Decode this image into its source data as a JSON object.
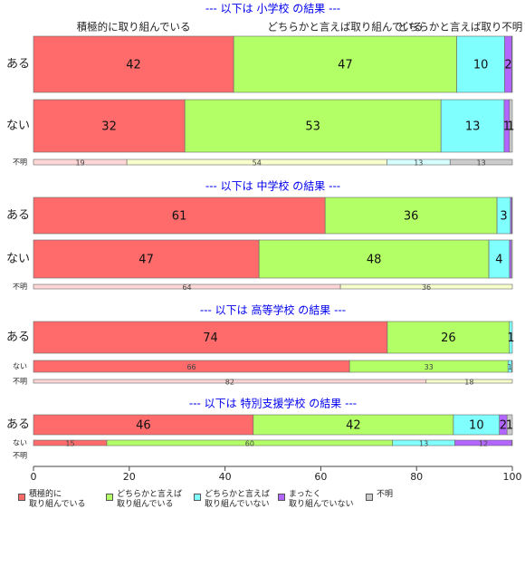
{
  "chart_data": {
    "type": "stacked-barh",
    "xlim": [
      0,
      100
    ],
    "xticks": [
      0,
      20,
      40,
      60,
      80,
      100
    ],
    "series": [
      {
        "name": "積極的に\n取り組んでいる",
        "color": "#ff6b6b"
      },
      {
        "name": "どちらかと言えば\n取り組んでいる",
        "color": "#b3ff66"
      },
      {
        "name": "どちらかと言えば\n取り組んでいない",
        "color": "#80ffff"
      },
      {
        "name": "まったく\n取り組んでいない",
        "color": "#b366ff"
      },
      {
        "name": "不明",
        "color": "#cccccc"
      }
    ],
    "panels": [
      {
        "title": "--- 以下は 小学校 の結果 ---",
        "column_labels": [
          "積極的に取り組んでいる",
          "どちらかと言えば取り組んでいる",
          "どちらかと言えば取り組んでいない",
          null,
          "不明"
        ],
        "rows": [
          {
            "label": "ある",
            "values": [
              41.8,
              46.6,
              10.0,
              1.5,
              0.1
            ],
            "value_labels": [
              "42",
              "47",
              "10",
              "2",
              null
            ]
          },
          {
            "label": "ない",
            "values": [
              31.6,
              53.5,
              13.2,
              1.1,
              0.6
            ],
            "value_labels": [
              "32",
              "53",
              "13",
              "1",
              "1"
            ]
          },
          {
            "label": "不明",
            "values": [
              19.5,
              54.3,
              13.2,
              0,
              13.0
            ],
            "value_labels": [
              "19",
              "54",
              "13",
              null,
              "13"
            ],
            "colors": [
              "#ffd6d6",
              "#f8ffcc",
              "#d6ffff",
              "#e6d6ff",
              "#cccccc"
            ]
          }
        ]
      },
      {
        "title": "--- 以下は 中学校 の結果 ---",
        "rows": [
          {
            "label": "ある",
            "values": [
              60.9,
              35.9,
              2.8,
              0.3,
              0.1
            ],
            "value_labels": [
              "61",
              "36",
              "3",
              null,
              null
            ]
          },
          {
            "label": "ない",
            "values": [
              47.1,
              48.0,
              4.3,
              0.4,
              0.2
            ],
            "value_labels": [
              "47",
              "48",
              "4",
              null,
              null
            ]
          },
          {
            "label": "不明",
            "values": [
              64.1,
              35.9,
              0,
              0,
              0
            ],
            "value_labels": [
              "64",
              "36",
              null,
              null,
              null
            ],
            "colors": [
              "#ffd6d6",
              "#f8ffcc",
              "#d6ffff",
              "#e6d6ff",
              "#cccccc"
            ]
          }
        ]
      },
      {
        "title": "--- 以下は 高等学校 の結果 ---",
        "rows": [
          {
            "label": "ある",
            "values": [
              73.9,
              25.5,
              0.6,
              0,
              0
            ],
            "value_labels": [
              "74",
              "26",
              "1",
              null,
              null
            ]
          },
          {
            "label": "ない",
            "values": [
              66.0,
              33.1,
              0.8,
              0.1,
              0
            ],
            "value_labels": [
              "66",
              "33",
              "1",
              null,
              null
            ]
          },
          {
            "label": "不明",
            "values": [
              82.0,
              18.0,
              0,
              0,
              0
            ],
            "value_labels": [
              "82",
              "18",
              null,
              null,
              null
            ],
            "colors": [
              "#ffd6d6",
              "#f8ffcc",
              "#d6ffff",
              "#e6d6ff",
              "#cccccc"
            ]
          }
        ]
      },
      {
        "title": "--- 以下は 特別支援学校 の結果 ---",
        "rows": [
          {
            "label": "ある",
            "values": [
              45.9,
              41.8,
              9.6,
              1.6,
              1.1
            ],
            "value_labels": [
              "46",
              "42",
              "10",
              "2",
              "1"
            ]
          },
          {
            "label": "ない",
            "values": [
              15.3,
              59.7,
              13.0,
              11.9,
              0.1
            ],
            "value_labels": [
              "15",
              "60",
              "13",
              "12",
              null
            ]
          },
          {
            "label": "不明",
            "values": [
              null,
              null,
              null,
              null,
              null
            ],
            "value_labels": [
              null,
              null,
              null,
              null,
              null
            ]
          }
        ]
      }
    ]
  }
}
